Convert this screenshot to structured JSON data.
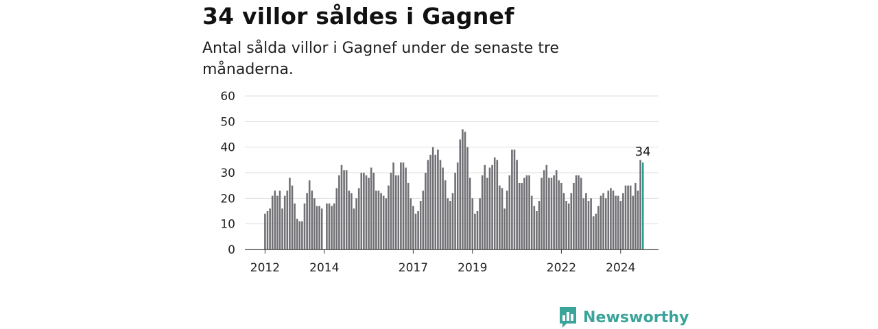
{
  "title": "34 villor såldes i Gagnef",
  "subtitle": "Antal sålda villor i Gagnef under de senaste tre månaderna.",
  "brand": {
    "name": "Newsworthy",
    "color": "#3aa39a"
  },
  "colors": {
    "bar": "#707075",
    "highlight": "#2a9d8f",
    "grid": "#dddddd",
    "axis": "#333333"
  },
  "chart_data": {
    "type": "bar",
    "ylim": [
      0,
      60
    ],
    "yticks": [
      0,
      10,
      20,
      30,
      40,
      50,
      60
    ],
    "xticks": [
      {
        "label": "2012",
        "index": 0
      },
      {
        "label": "2014",
        "index": 24
      },
      {
        "label": "2017",
        "index": 60
      },
      {
        "label": "2019",
        "index": 84
      },
      {
        "label": "2022",
        "index": 120
      },
      {
        "label": "2024",
        "index": 144
      }
    ],
    "highlight_label": "34",
    "grid": true,
    "values": [
      14,
      15,
      16,
      21,
      23,
      21,
      23,
      16,
      21,
      23,
      28,
      25,
      18,
      12,
      11,
      11,
      18,
      22,
      27,
      23,
      20,
      17,
      17,
      16,
      null,
      18,
      18,
      17,
      18,
      24,
      29,
      33,
      31,
      31,
      23,
      22,
      16,
      20,
      24,
      30,
      30,
      29,
      28,
      32,
      30,
      23,
      23,
      22,
      21,
      20,
      25,
      30,
      34,
      29,
      29,
      34,
      34,
      32,
      26,
      20,
      17,
      14,
      15,
      19,
      23,
      30,
      35,
      37,
      40,
      37,
      39,
      35,
      32,
      27,
      20,
      19,
      22,
      30,
      34,
      43,
      47,
      46,
      40,
      28,
      20,
      14,
      15,
      20,
      29,
      33,
      28,
      32,
      33,
      36,
      35,
      25,
      24,
      16,
      23,
      29,
      39,
      39,
      35,
      26,
      26,
      28,
      29,
      29,
      21,
      17,
      15,
      19,
      28,
      31,
      33,
      28,
      28,
      29,
      31,
      27,
      26,
      22,
      19,
      18,
      22,
      26,
      29,
      29,
      28,
      20,
      22,
      19,
      20,
      13,
      14,
      17,
      21,
      22,
      20,
      23,
      24,
      23,
      21,
      21,
      19,
      22,
      25,
      25,
      25,
      21,
      26,
      23,
      35,
      34
    ]
  }
}
